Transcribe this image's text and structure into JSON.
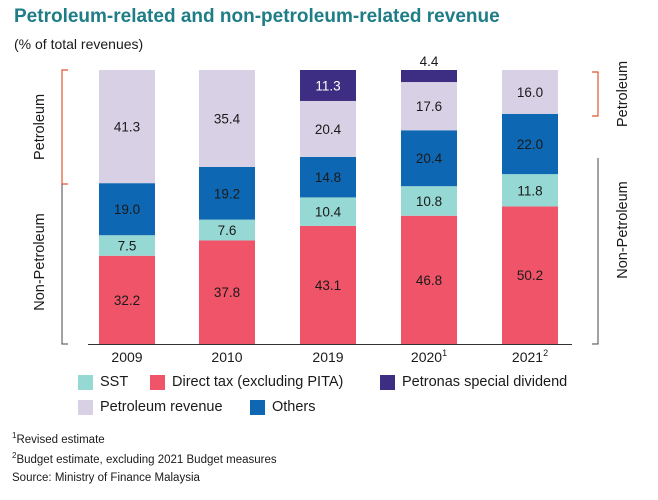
{
  "title": "Petroleum-related and non-petroleum-related revenue",
  "subtitle": "(% of total revenues)",
  "colors": {
    "sst": "#96d8d3",
    "direct_tax": "#f05468",
    "petronas": "#3e2e83",
    "petroleum": "#d8d1e6",
    "others": "#0e67b2",
    "bracket_petroleum": "#e2552f",
    "bracket_nonpetroleum": "#444444",
    "title": "#1e7d86"
  },
  "chart_data": {
    "type": "bar",
    "stacked": true,
    "categories": [
      "2009",
      "2010",
      "2019",
      "2020",
      "2021"
    ],
    "category_superscripts": [
      "",
      "",
      "",
      "1",
      "2"
    ],
    "series": [
      {
        "name": "Direct tax (excluding PITA)",
        "color_key": "direct_tax",
        "values": [
          32.2,
          37.8,
          43.1,
          46.8,
          50.2
        ]
      },
      {
        "name": "SST",
        "color_key": "sst",
        "values": [
          7.5,
          7.6,
          10.4,
          10.8,
          11.8
        ]
      },
      {
        "name": "Others",
        "color_key": "others",
        "values": [
          19.0,
          19.2,
          14.8,
          20.4,
          22.0
        ]
      },
      {
        "name": "Petroleum revenue",
        "color_key": "petroleum",
        "values": [
          41.3,
          35.4,
          20.4,
          17.6,
          16.0
        ]
      },
      {
        "name": "Petronas special dividend",
        "color_key": "petronas",
        "values": [
          0,
          0,
          11.3,
          4.4,
          0
        ]
      }
    ],
    "ylim": [
      0,
      100
    ],
    "grid": false,
    "legend_position": "bottom",
    "group_labels": {
      "left": [
        "Petroleum",
        "Non-Petroleum"
      ],
      "right": [
        "Petroleum",
        "Non-Petroleum"
      ]
    }
  },
  "legend": {
    "items": [
      {
        "label": "SST",
        "color_key": "sst"
      },
      {
        "label": "Direct tax (excluding PITA)",
        "color_key": "direct_tax"
      },
      {
        "label": "Petronas special dividend",
        "color_key": "petronas"
      },
      {
        "label": "Petroleum revenue",
        "color_key": "petroleum"
      },
      {
        "label": "Others",
        "color_key": "others"
      }
    ]
  },
  "footnotes": {
    "note1_mark": "1",
    "note1_text": "Revised estimate",
    "note2_mark": "2",
    "note2_text": "Budget estimate, excluding 2021 Budget measures"
  },
  "source": "Source: Ministry of Finance Malaysia"
}
